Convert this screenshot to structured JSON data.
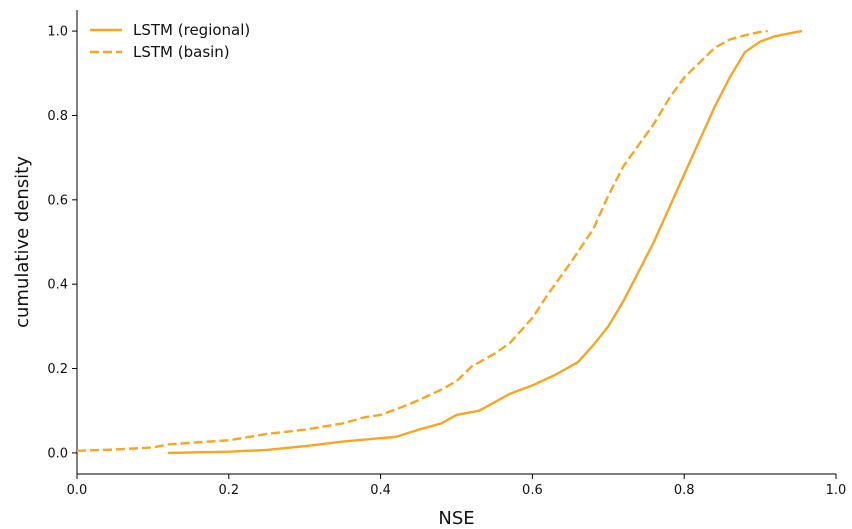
{
  "chart_data": {
    "type": "line",
    "title": "",
    "xlabel": "NSE",
    "ylabel": "cumulative density",
    "xlim": [
      0.0,
      1.0
    ],
    "ylim": [
      -0.05,
      1.05
    ],
    "xticks": [
      "0.0",
      "0.2",
      "0.4",
      "0.6",
      "0.8",
      "1.0"
    ],
    "yticks": [
      "0.0",
      "0.2",
      "0.4",
      "0.6",
      "0.8",
      "1.0"
    ],
    "grid": false,
    "legend_position": "top-left",
    "color": "#f5a623",
    "series": [
      {
        "name": "LSTM (regional)",
        "style": "solid",
        "x": [
          0.12,
          0.2,
          0.25,
          0.3,
          0.35,
          0.4,
          0.42,
          0.45,
          0.48,
          0.5,
          0.53,
          0.55,
          0.57,
          0.6,
          0.63,
          0.66,
          0.68,
          0.7,
          0.72,
          0.74,
          0.76,
          0.78,
          0.8,
          0.82,
          0.84,
          0.86,
          0.88,
          0.9,
          0.92,
          0.94,
          0.955
        ],
        "y": [
          0.0,
          0.003,
          0.007,
          0.016,
          0.027,
          0.035,
          0.038,
          0.055,
          0.07,
          0.09,
          0.1,
          0.12,
          0.14,
          0.16,
          0.185,
          0.215,
          0.255,
          0.3,
          0.36,
          0.43,
          0.5,
          0.58,
          0.66,
          0.74,
          0.82,
          0.89,
          0.95,
          0.975,
          0.988,
          0.995,
          1.0
        ]
      },
      {
        "name": "LSTM (basin)",
        "style": "dashed",
        "x": [
          0.0,
          0.05,
          0.1,
          0.12,
          0.15,
          0.2,
          0.25,
          0.3,
          0.35,
          0.38,
          0.4,
          0.43,
          0.45,
          0.48,
          0.5,
          0.52,
          0.55,
          0.57,
          0.6,
          0.62,
          0.65,
          0.68,
          0.7,
          0.72,
          0.74,
          0.76,
          0.78,
          0.8,
          0.82,
          0.84,
          0.86,
          0.88,
          0.9,
          0.91
        ],
        "y": [
          0.005,
          0.008,
          0.013,
          0.02,
          0.024,
          0.03,
          0.045,
          0.055,
          0.07,
          0.085,
          0.09,
          0.11,
          0.125,
          0.15,
          0.17,
          0.205,
          0.235,
          0.26,
          0.32,
          0.375,
          0.45,
          0.53,
          0.61,
          0.68,
          0.73,
          0.78,
          0.84,
          0.89,
          0.925,
          0.96,
          0.98,
          0.99,
          0.998,
          1.0
        ]
      }
    ]
  }
}
